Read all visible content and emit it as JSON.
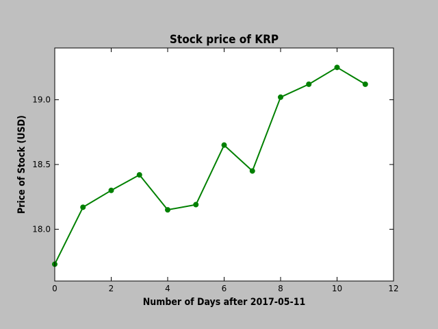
{
  "chart_data": {
    "type": "line",
    "title": "Stock price of KRP",
    "xlabel": "Number of Days after 2017-05-11",
    "ylabel": "Price of Stock (USD)",
    "xlim": [
      0,
      12
    ],
    "ylim": [
      17.6,
      19.4
    ],
    "xticks": [
      0,
      2,
      4,
      6,
      8,
      10,
      12
    ],
    "xtick_labels": [
      "0",
      "2",
      "4",
      "6",
      "8",
      "10",
      "12"
    ],
    "yticks": [
      18.0,
      18.5,
      19.0
    ],
    "ytick_labels": [
      "18.0",
      "18.5",
      "19.0"
    ],
    "grid": false,
    "series": [
      {
        "color": "#008000",
        "marker": "circle",
        "x": [
          0,
          1,
          2,
          3,
          4,
          5,
          6,
          7,
          8,
          9,
          10,
          11
        ],
        "y": [
          17.73,
          18.17,
          18.3,
          18.42,
          18.15,
          18.19,
          18.65,
          18.45,
          19.02,
          19.12,
          19.25,
          19.12
        ]
      }
    ]
  }
}
